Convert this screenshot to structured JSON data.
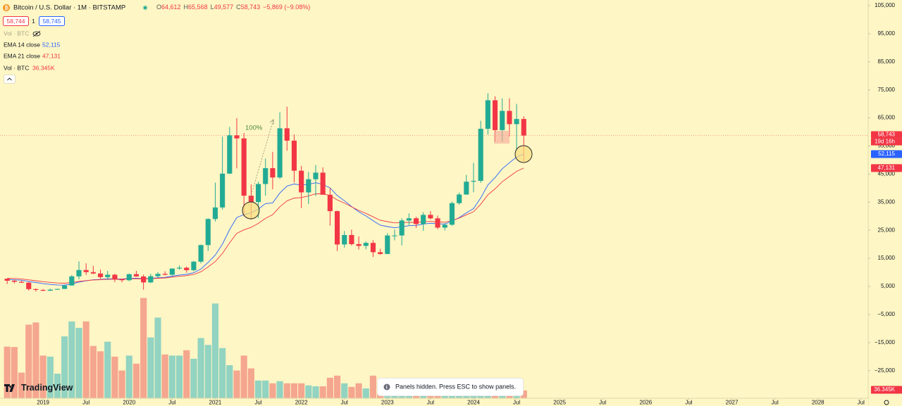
{
  "chart_data": {
    "type": "candlestick",
    "title": "Bitcoin / U.S. Dollar · 1M · BITSTAMP",
    "ohlc": [
      {
        "key": "O",
        "value": "64,612"
      },
      {
        "key": "H",
        "value": "65,568"
      },
      {
        "key": "L",
        "value": "49,577"
      },
      {
        "key": "C",
        "value": "58,743"
      }
    ],
    "change": "−5,869 (−9.08%)",
    "bid": "58,744",
    "spread": "1",
    "ask": "58,745",
    "hidden_indicator": "Vol · BTC",
    "x": [
      "2018-08",
      "2018-09",
      "2018-10",
      "2018-11",
      "2018-12",
      "2019-01",
      "2019-02",
      "2019-03",
      "2019-04",
      "2019-05",
      "2019-06",
      "2019-07",
      "2019-08",
      "2019-09",
      "2019-10",
      "2019-11",
      "2019-12",
      "2020-01",
      "2020-02",
      "2020-03",
      "2020-04",
      "2020-05",
      "2020-06",
      "2020-07",
      "2020-08",
      "2020-09",
      "2020-10",
      "2020-11",
      "2020-12",
      "2021-01",
      "2021-02",
      "2021-03",
      "2021-04",
      "2021-05",
      "2021-06",
      "2021-07",
      "2021-08",
      "2021-09",
      "2021-10",
      "2021-11",
      "2021-12",
      "2022-01",
      "2022-02",
      "2022-03",
      "2022-04",
      "2022-05",
      "2022-06",
      "2022-07",
      "2022-08",
      "2022-09",
      "2022-10",
      "2022-11",
      "2022-12",
      "2023-01",
      "2023-02",
      "2023-03",
      "2023-04",
      "2023-05",
      "2023-06",
      "2023-07",
      "2023-08",
      "2023-09",
      "2023-10",
      "2023-11",
      "2023-12",
      "2024-01",
      "2024-02",
      "2024-03",
      "2024-04",
      "2024-05",
      "2024-06",
      "2024-07",
      "2024-08"
    ],
    "open": [
      7730,
      7010,
      6630,
      6320,
      4030,
      3740,
      3450,
      3830,
      4100,
      5320,
      8560,
      10820,
      10080,
      9590,
      8290,
      9150,
      7550,
      7190,
      9350,
      8540,
      6410,
      8630,
      9450,
      9140,
      11350,
      11650,
      10780,
      13800,
      19710,
      28990,
      33110,
      45160,
      58800,
      57700,
      37300,
      35040,
      41460,
      47100,
      43790,
      61300,
      56900,
      46200,
      38480,
      43160,
      45510,
      37640,
      31790,
      19930,
      23300,
      20050,
      19420,
      20490,
      17170,
      16540,
      23130,
      23130,
      28470,
      29250,
      27200,
      30470,
      29230,
      25930,
      26960,
      34640,
      37720,
      42280,
      42580,
      61130,
      71290,
      60660,
      67500,
      62770,
      64612
    ],
    "high": [
      7760,
      7400,
      7000,
      6580,
      4300,
      4100,
      4200,
      4150,
      5600,
      9050,
      13880,
      13200,
      12330,
      10950,
      10540,
      9510,
      7750,
      9570,
      10500,
      9190,
      9460,
      10070,
      10390,
      11440,
      12470,
      12070,
      14100,
      19870,
      29300,
      41950,
      58350,
      61800,
      64900,
      59600,
      41300,
      42300,
      50500,
      52900,
      67000,
      69000,
      59100,
      47900,
      45800,
      48200,
      47400,
      40000,
      31990,
      24700,
      25200,
      22800,
      21000,
      21480,
      18400,
      23950,
      25250,
      29200,
      31000,
      29800,
      31400,
      31800,
      30200,
      27480,
      35200,
      38400,
      44700,
      48970,
      64000,
      73800,
      72700,
      71950,
      71950,
      70000,
      65568
    ],
    "low": [
      5880,
      6100,
      6200,
      3500,
      3150,
      3350,
      3390,
      3730,
      4060,
      5300,
      7500,
      9070,
      9350,
      7710,
      7300,
      6520,
      6430,
      6850,
      8450,
      3850,
      6150,
      8100,
      8900,
      8900,
      10960,
      9880,
      10380,
      13200,
      17600,
      28130,
      32300,
      45000,
      47000,
      30000,
      28800,
      29300,
      37300,
      39600,
      43300,
      53300,
      42000,
      32900,
      34300,
      37200,
      37700,
      26700,
      17600,
      18800,
      19550,
      18150,
      18200,
      15480,
      16250,
      16500,
      21400,
      19570,
      26900,
      25800,
      24800,
      28850,
      25350,
      24900,
      26550,
      34100,
      37600,
      38500,
      41880,
      59000,
      56500,
      56550,
      58400,
      53500,
      49577
    ],
    "close": [
      7010,
      6630,
      6320,
      4030,
      3740,
      3450,
      3830,
      4100,
      5320,
      8560,
      10820,
      10080,
      9590,
      8290,
      9150,
      7550,
      7190,
      9350,
      8540,
      6410,
      8630,
      9450,
      9140,
      11350,
      11650,
      10780,
      13800,
      19710,
      28990,
      33110,
      45160,
      58800,
      57700,
      37300,
      35040,
      41460,
      47100,
      43790,
      61300,
      56900,
      46200,
      38480,
      43160,
      45510,
      37640,
      31790,
      19930,
      23300,
      20050,
      19420,
      20490,
      17170,
      16540,
      23130,
      23130,
      28470,
      29250,
      27200,
      30470,
      29230,
      25930,
      26960,
      34640,
      37720,
      42280,
      42580,
      61130,
      71290,
      60660,
      67500,
      62770,
      64612,
      58743
    ],
    "volume": [
      242000,
      240000,
      120000,
      345000,
      355000,
      200000,
      195000,
      115000,
      290000,
      360000,
      330000,
      360000,
      245000,
      220000,
      265000,
      195000,
      130000,
      200000,
      162000,
      470000,
      285000,
      378000,
      205000,
      200000,
      200000,
      225000,
      185000,
      282000,
      250000,
      444000,
      235000,
      155000,
      130000,
      200000,
      140000,
      83000,
      83000,
      70000,
      80000,
      70000,
      70000,
      70000,
      60000,
      56000,
      56000,
      96000,
      106000,
      70000,
      53000,
      70000,
      46000,
      106000,
      53000,
      60000,
      55000,
      65000,
      50000,
      45000,
      50000,
      35000,
      35000,
      30000,
      45000,
      45000,
      50000,
      55000,
      70000,
      75000,
      55000,
      45000,
      45000,
      55000,
      36345
    ],
    "volume_name": "Vol · BTC",
    "volume_label": "36.345K",
    "volume_lim": [
      0,
      600000
    ],
    "up_color": "#22ab94",
    "down_color": "#f23645",
    "volume_up_color": "#92d3c1",
    "volume_down_color": "#f5a68f",
    "series": [
      {
        "name": "EMA 14 close",
        "color": "#2962ff",
        "value_label": "52,115",
        "values": [
          7435,
          7328,
          7194,
          6772,
          6368,
          5979,
          5693,
          5481,
          5460,
          5873,
          6533,
          7006,
          7351,
          7476,
          7699,
          7679,
          7614,
          7846,
          7938,
          7734,
          7853,
          8066,
          8209,
          8628,
          9031,
          9264,
          9869,
          11181,
          13555,
          16161,
          20027,
          25195,
          29529,
          30565,
          31162,
          32535,
          34476,
          34717,
          38261,
          40746,
          41472,
          41073,
          41352,
          41906,
          41337,
          40065,
          37382,
          35505,
          33444,
          31575,
          30097,
          28374,
          26796,
          26307,
          25883,
          26228,
          26631,
          26707,
          27209,
          27478,
          27271,
          27230,
          28218,
          29485,
          31192,
          32710,
          36499,
          41137,
          43739,
          46906,
          49021,
          51098,
          52115
        ]
      },
      {
        "name": "EMA 21 close",
        "color": "#f23645",
        "value_label": "47,131",
        "values": [
          7910,
          7794,
          7660,
          7330,
          7004,
          6681,
          6422,
          6211,
          6130,
          6351,
          6757,
          7059,
          7289,
          7380,
          7541,
          7542,
          7510,
          7677,
          7755,
          7633,
          7724,
          7881,
          7995,
          8300,
          8605,
          8803,
          9257,
          10207,
          11915,
          13842,
          16689,
          20517,
          23897,
          25115,
          26017,
          27421,
          29210,
          30535,
          33332,
          35474,
          36449,
          36634,
          37227,
          37980,
          37949,
          37389,
          35802,
          34666,
          33337,
          32072,
          31019,
          29760,
          28559,
          28066,
          27618,
          27696,
          27837,
          27779,
          28024,
          28135,
          27935,
          27846,
          28463,
          29304,
          30484,
          31584,
          34270,
          37635,
          39728,
          42253,
          44118,
          45981,
          47131
        ]
      }
    ],
    "ylim": [
      -34850,
      107000
    ],
    "yticks": [
      {
        "value": 105000,
        "label": "105,000"
      },
      {
        "value": 95000,
        "label": "95,000"
      },
      {
        "value": 85000,
        "label": "85,000"
      },
      {
        "value": 75000,
        "label": "75,000"
      },
      {
        "value": 65000,
        "label": "65,000"
      },
      {
        "value": 55000,
        "label": "55,000"
      },
      {
        "value": 45000,
        "label": "45,000"
      },
      {
        "value": 35000,
        "label": "35,000"
      },
      {
        "value": 25000,
        "label": "25,000"
      },
      {
        "value": 15000,
        "label": "15,000"
      },
      {
        "value": 5000,
        "label": "5,000"
      },
      {
        "value": -5000,
        "label": "−5,000"
      },
      {
        "value": -15000,
        "label": "−15,000"
      },
      {
        "value": -25000,
        "label": "−25,000"
      }
    ],
    "xlim": [
      "2018-07",
      "2028-08"
    ],
    "xticks": [
      {
        "value": "2019-01",
        "label": "2019"
      },
      {
        "value": "2019-07",
        "label": "Jul"
      },
      {
        "value": "2020-01",
        "label": "2020"
      },
      {
        "value": "2020-07",
        "label": "Jul"
      },
      {
        "value": "2021-01",
        "label": "2021"
      },
      {
        "value": "2021-07",
        "label": "Jul"
      },
      {
        "value": "2022-01",
        "label": "2022"
      },
      {
        "value": "2022-07",
        "label": "Jul"
      },
      {
        "value": "2023-01",
        "label": "2023"
      },
      {
        "value": "2023-07",
        "label": "Jul"
      },
      {
        "value": "2024-01",
        "label": "2024"
      },
      {
        "value": "2024-07",
        "label": "Jul"
      },
      {
        "value": "2025-01",
        "label": "2025"
      },
      {
        "value": "2025-07",
        "label": "Jul"
      },
      {
        "value": "2026-01",
        "label": "2026"
      },
      {
        "value": "2026-07",
        "label": "Jul"
      },
      {
        "value": "2027-01",
        "label": "2027"
      },
      {
        "value": "2027-07",
        "label": "Jul"
      },
      {
        "value": "2028-01",
        "label": "2028"
      },
      {
        "value": "2028-07",
        "label": "Jul"
      }
    ],
    "grid": false,
    "last_price_label": "58,743",
    "countdown": "19d 16h",
    "annotation": "100%",
    "watermark": "TradingView",
    "toast": "Panels hidden. Press ESC to show panels."
  }
}
